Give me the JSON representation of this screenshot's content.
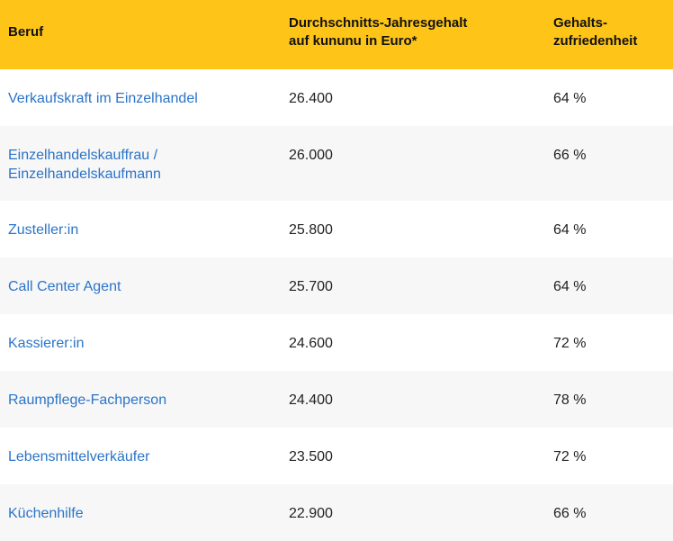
{
  "header": {
    "col1": "Beruf",
    "col2_line1": "Durchschnitts-Jahresgehalt",
    "col2_line2": "auf kununu in Euro*",
    "col3_line1": "Gehalts-",
    "col3_line2": "zufriedenheit"
  },
  "rows": [
    {
      "beruf": "Verkaufskraft im Einzelhandel",
      "gehalt": "26.400",
      "zufriedenheit": "64 %"
    },
    {
      "beruf": "Einzelhandelskauffrau / Einzelhandelskaufmann",
      "gehalt": "26.000",
      "zufriedenheit": "66 %"
    },
    {
      "beruf": "Zusteller:in",
      "gehalt": "25.800",
      "zufriedenheit": "64 %"
    },
    {
      "beruf": "Call Center Agent",
      "gehalt": "25.700",
      "zufriedenheit": "64 %"
    },
    {
      "beruf": "Kassierer:in",
      "gehalt": "24.600",
      "zufriedenheit": "72 %"
    },
    {
      "beruf": "Raumpflege-Fachperson",
      "gehalt": "24.400",
      "zufriedenheit": "78 %"
    },
    {
      "beruf": "Lebensmittelverkäufer",
      "gehalt": "23.500",
      "zufriedenheit": "72 %"
    },
    {
      "beruf": "Küchenhilfe",
      "gehalt": "22.900",
      "zufriedenheit": "66 %"
    }
  ],
  "colors": {
    "header": "#fec418",
    "link": "#2b74c8",
    "stripe": "#f7f7f7"
  }
}
